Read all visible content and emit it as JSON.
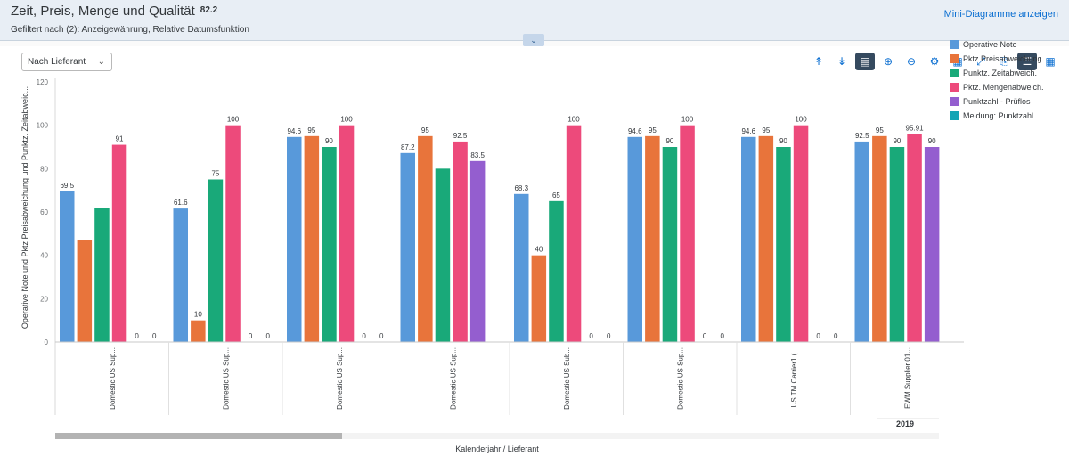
{
  "header": {
    "title": "Zeit, Preis, Menge und Qualität",
    "kpi": "82.2",
    "filter_text": "Gefiltert nach (2): Anzeigewährung, Relative Datumsfunktion",
    "mini_link": "Mini-Diagramme anzeigen"
  },
  "controls": {
    "select_value": "Nach Lieferant"
  },
  "toolbar": {
    "icons": [
      "expand-all-icon",
      "collapse-all-icon",
      "details-icon",
      "zoom-in-icon",
      "zoom-out-icon",
      "settings-icon",
      "chart-icon",
      "fullscreen-icon",
      "export-icon",
      "chart-view-icon",
      "table-view-icon"
    ]
  },
  "colors": {
    "s0": "#5899da",
    "s1": "#e8743b",
    "s2": "#19a979",
    "s3": "#ed4a7b",
    "s4": "#945ecf",
    "s5": "#13a4b4"
  },
  "chart_data": {
    "type": "bar",
    "ylabel": "Operative Note und Pktz Preisabweichung und Punktz. Zeitabweic...",
    "xlabel": "Kalenderjahr / Lieferant",
    "ylim": [
      0,
      120
    ],
    "yticks": [
      0,
      20,
      40,
      60,
      80,
      100,
      120
    ],
    "group_label": "2019",
    "categories": [
      "Domestic US Sup...",
      "Domestic US Sup...",
      "Domestic US Sup...",
      "Domestic US Sup...",
      "Domestic US Sub...",
      "Domestic US Sup...",
      "US TM Carrier1 (...",
      "EWM Supplier 01..."
    ],
    "series": [
      {
        "name": "Operative Note",
        "values": [
          69.5,
          61.6,
          94.6,
          87.2,
          68.3,
          94.6,
          94.6,
          92.5
        ],
        "labels": [
          "69.5",
          "61.6",
          "94.6",
          "87.2",
          "68.3",
          "94.6",
          "94.6",
          "92.5"
        ]
      },
      {
        "name": "Pktz Preisabweichung",
        "values": [
          47,
          10,
          95,
          95,
          40,
          95,
          95,
          95
        ],
        "labels": [
          "",
          "10",
          "95",
          "95",
          "40",
          "95",
          "95",
          "95"
        ]
      },
      {
        "name": "Punktz. Zeitabweich.",
        "values": [
          62,
          75,
          90,
          80,
          65,
          90,
          90,
          90
        ],
        "labels": [
          "",
          "75",
          "90",
          "",
          "65",
          "90",
          "90",
          "90"
        ]
      },
      {
        "name": "Pktz. Mengenabweich.",
        "values": [
          91,
          100,
          100,
          92.5,
          100,
          100,
          100,
          95.91
        ],
        "labels": [
          "91",
          "100",
          "100",
          "92.5",
          "100",
          "100",
          "100",
          "95.91"
        ]
      },
      {
        "name": "Punktzahl - Prüflos",
        "values": [
          0,
          0,
          0,
          83.5,
          0,
          0,
          0,
          90
        ],
        "labels": [
          "0",
          "0",
          "0",
          "83.5",
          "0",
          "0",
          "0",
          "90"
        ]
      },
      {
        "name": "Meldung: Punktzahl",
        "values": [
          0,
          0,
          0,
          null,
          0,
          0,
          0,
          null
        ],
        "labels": [
          "0",
          "0",
          "0",
          "",
          "0",
          "0",
          "0",
          ""
        ]
      }
    ],
    "legend_position": "right",
    "grid": false
  }
}
